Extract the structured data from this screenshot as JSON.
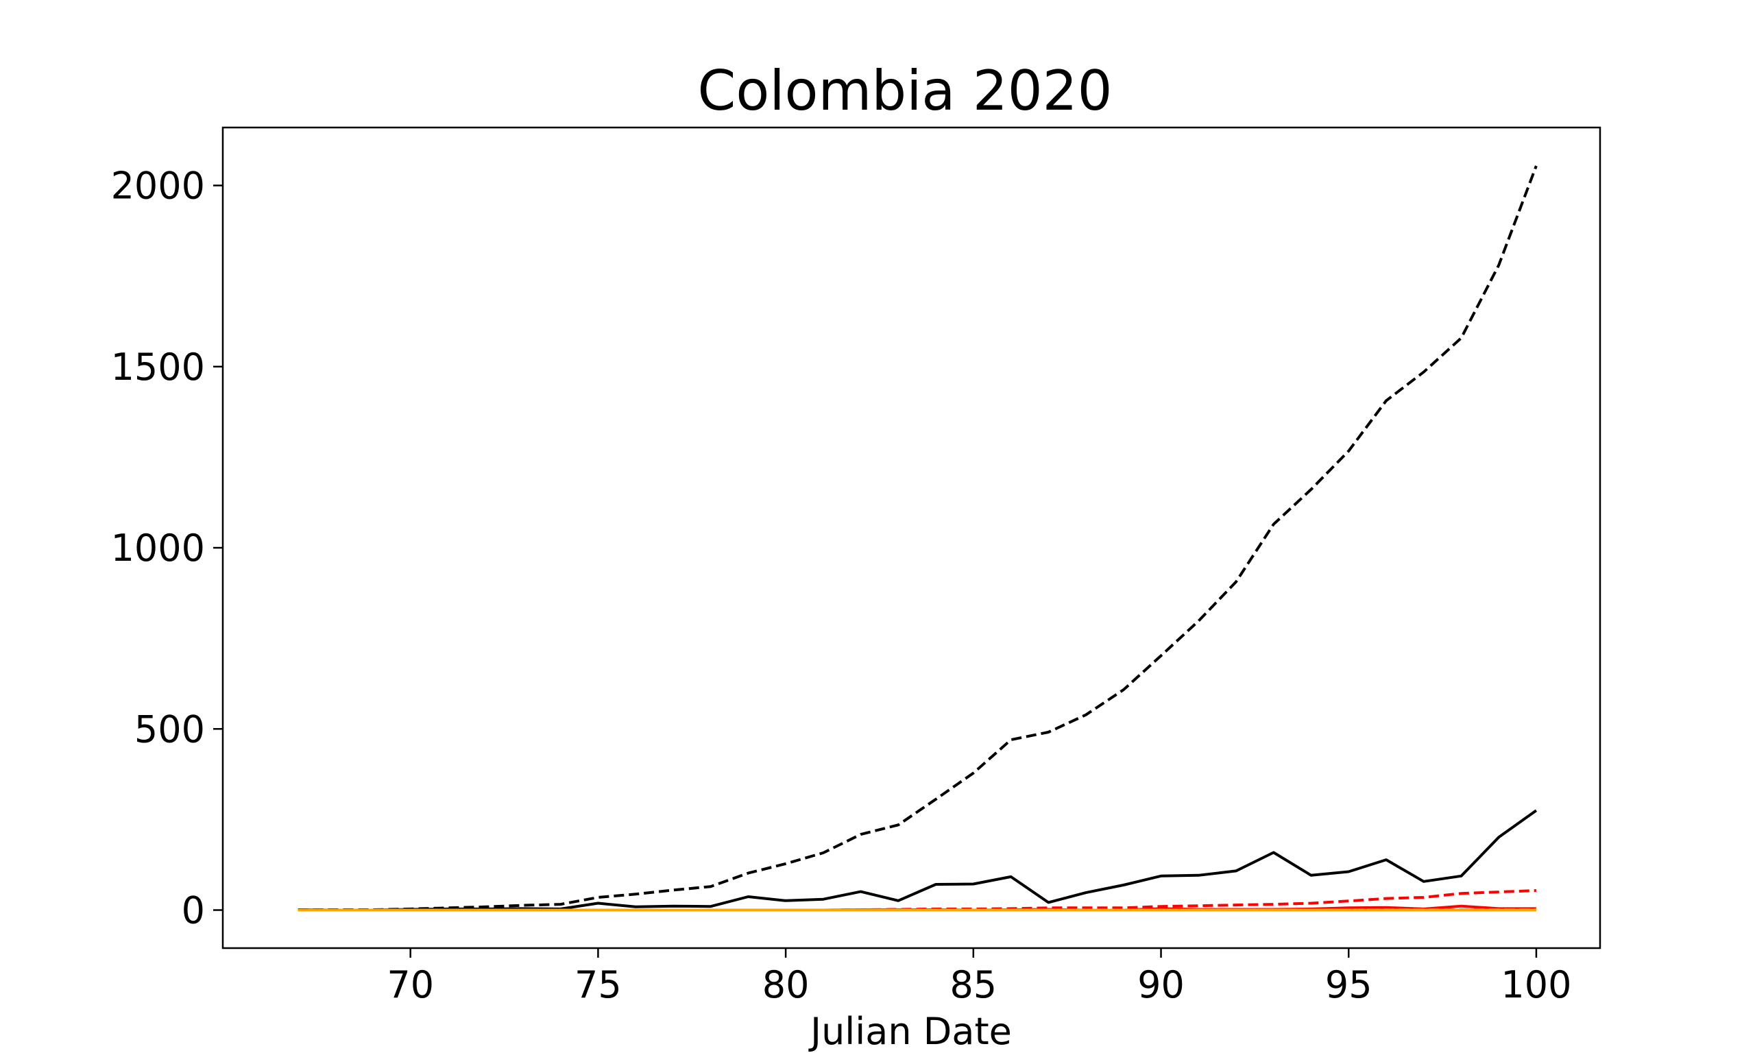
{
  "chart_data": {
    "type": "line",
    "title": "Colombia 2020",
    "xlabel": "Julian Date",
    "ylabel": "",
    "xlim": [
      65.0,
      101.7
    ],
    "ylim": [
      -105,
      2160
    ],
    "xticks": [
      70,
      75,
      80,
      85,
      90,
      95,
      100
    ],
    "yticks": [
      0,
      500,
      1000,
      1500,
      2000
    ],
    "grid": false,
    "legend": "none",
    "series": [
      {
        "color": "#000000",
        "dash": "dashed",
        "x": [
          67,
          68,
          69,
          70,
          71,
          72,
          73,
          74,
          75,
          76,
          77,
          78,
          79,
          80,
          81,
          82,
          83,
          84,
          85,
          86,
          87,
          88,
          89,
          90,
          91,
          92,
          93,
          94,
          95,
          96,
          97,
          98,
          99,
          100
        ],
        "values": [
          1,
          1,
          1,
          3,
          6,
          9,
          13,
          16,
          35,
          44,
          55,
          65,
          102,
          128,
          158,
          209,
          235,
          306,
          378,
          470,
          491,
          539,
          608,
          702,
          798,
          906,
          1065,
          1161,
          1267,
          1406,
          1485,
          1579,
          1780,
          2054
        ]
      },
      {
        "color": "#000000",
        "dash": "solid",
        "x": [
          67,
          68,
          69,
          70,
          71,
          72,
          73,
          74,
          75,
          76,
          77,
          78,
          79,
          80,
          81,
          82,
          83,
          84,
          85,
          86,
          87,
          88,
          89,
          90,
          91,
          92,
          93,
          94,
          95,
          96,
          97,
          98,
          99,
          100
        ],
        "values": [
          1,
          0,
          0,
          2,
          3,
          3,
          4,
          3,
          19,
          9,
          11,
          10,
          37,
          26,
          30,
          51,
          26,
          71,
          72,
          92,
          21,
          48,
          69,
          94,
          96,
          108,
          159,
          96,
          106,
          139,
          79,
          94,
          201,
          275
        ]
      },
      {
        "color": "#ff0000",
        "dash": "dashed",
        "x": [
          67,
          68,
          69,
          70,
          71,
          72,
          73,
          74,
          75,
          76,
          77,
          78,
          79,
          80,
          81,
          82,
          83,
          84,
          85,
          86,
          87,
          88,
          89,
          90,
          91,
          92,
          93,
          94,
          95,
          96,
          97,
          98,
          99,
          100
        ],
        "values": [
          0,
          0,
          0,
          0,
          0,
          0,
          0,
          0,
          0,
          0,
          0,
          0,
          0,
          0,
          0,
          1,
          2,
          3,
          3,
          4,
          6,
          6,
          6,
          10,
          12,
          14,
          16,
          19,
          25,
          32,
          35,
          46,
          50,
          54
        ]
      },
      {
        "color": "#ff0000",
        "dash": "solid",
        "x": [
          67,
          68,
          69,
          70,
          71,
          72,
          73,
          74,
          75,
          76,
          77,
          78,
          79,
          80,
          81,
          82,
          83,
          84,
          85,
          86,
          87,
          88,
          89,
          90,
          91,
          92,
          93,
          94,
          95,
          96,
          97,
          98,
          99,
          100
        ],
        "values": [
          0,
          0,
          0,
          0,
          0,
          0,
          0,
          0,
          0,
          0,
          0,
          0,
          0,
          0,
          0,
          1,
          1,
          1,
          0,
          1,
          2,
          0,
          0,
          4,
          2,
          2,
          2,
          3,
          6,
          7,
          3,
          11,
          4,
          4
        ]
      },
      {
        "color": "#ff8c00",
        "dash": "dashed",
        "x": [
          67,
          68,
          69,
          70,
          71,
          72,
          73,
          74,
          75,
          76,
          77,
          78,
          79,
          80,
          81,
          82,
          83,
          84,
          85,
          86,
          87,
          88,
          89,
          90,
          91,
          92,
          93,
          94,
          95,
          96,
          97,
          98,
          99,
          100
        ],
        "values": [
          0,
          0,
          0,
          0,
          0,
          0,
          0,
          0,
          0,
          0,
          0,
          0,
          0,
          0,
          0,
          0,
          0,
          0,
          0,
          0,
          0,
          0,
          0,
          0,
          0,
          0,
          0,
          0,
          0,
          1,
          1,
          1,
          1,
          1
        ]
      },
      {
        "color": "#ffa500",
        "dash": "solid",
        "x": [
          67,
          68,
          69,
          70,
          71,
          72,
          73,
          74,
          75,
          76,
          77,
          78,
          79,
          80,
          81,
          82,
          83,
          84,
          85,
          86,
          87,
          88,
          89,
          90,
          91,
          92,
          93,
          94,
          95,
          96,
          97,
          98,
          99,
          100
        ],
        "values": [
          0,
          0,
          0,
          0,
          0,
          0,
          0,
          0,
          0,
          0,
          0,
          0,
          0,
          0,
          0,
          0,
          0,
          0,
          0,
          0,
          0,
          0,
          0,
          0,
          0,
          0,
          0,
          0,
          0,
          0,
          0,
          0,
          0,
          0
        ]
      }
    ]
  }
}
